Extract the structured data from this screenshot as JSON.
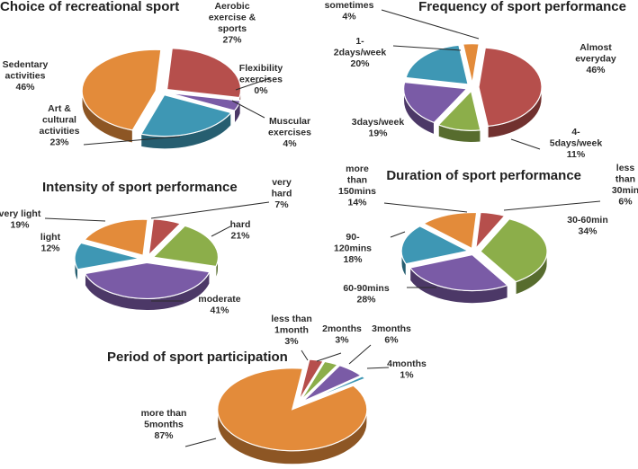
{
  "colors": {
    "red": "#B64F4C",
    "purple": "#7A5BA6",
    "teal": "#3E97B4",
    "orange": "#E38B3A",
    "green": "#8CAE4A",
    "text": "#2b2b2b"
  },
  "chart_data": [
    {
      "type": "pie",
      "title": "Choice of recreational sport",
      "slices": [
        {
          "label": [
            "Aerobic",
            "exercise &",
            "sports"
          ],
          "value": 27,
          "value_text": "27%",
          "color": "red"
        },
        {
          "label": [
            "Flexibility",
            "exercises"
          ],
          "value": 0,
          "value_text": "0%",
          "color": "green"
        },
        {
          "label": [
            "Muscular",
            "exercises"
          ],
          "value": 4,
          "value_text": "4%",
          "color": "purple"
        },
        {
          "label": [
            "Art &",
            "cultural",
            "activities"
          ],
          "value": 23,
          "value_text": "23%",
          "color": "teal"
        },
        {
          "label": [
            "Sedentary",
            "activities"
          ],
          "value": 46,
          "value_text": "46%",
          "color": "orange"
        }
      ]
    },
    {
      "type": "pie",
      "title": "Frequency of sport performance",
      "slices": [
        {
          "label": [
            "Almost",
            "everyday"
          ],
          "value": 46,
          "value_text": "46%",
          "color": "red"
        },
        {
          "label": [
            "4-",
            "5days/week"
          ],
          "value": 11,
          "value_text": "11%",
          "color": "green"
        },
        {
          "label": [
            "3days/week"
          ],
          "value": 19,
          "value_text": "19%",
          "color": "purple"
        },
        {
          "label": [
            "1-",
            "2days/week"
          ],
          "value": 20,
          "value_text": "20%",
          "color": "teal"
        },
        {
          "label": [
            "sometimes"
          ],
          "value": 4,
          "value_text": "4%",
          "color": "orange"
        }
      ]
    },
    {
      "type": "pie",
      "title": "Intensity of sport performance",
      "slices": [
        {
          "label": [
            "very",
            "hard"
          ],
          "value": 7,
          "value_text": "7%",
          "color": "red"
        },
        {
          "label": [
            "hard"
          ],
          "value": 21,
          "value_text": "21%",
          "color": "green"
        },
        {
          "label": [
            "moderate"
          ],
          "value": 41,
          "value_text": "41%",
          "color": "purple"
        },
        {
          "label": [
            "light"
          ],
          "value": 12,
          "value_text": "12%",
          "color": "teal"
        },
        {
          "label": [
            "very light"
          ],
          "value": 19,
          "value_text": "19%",
          "color": "orange"
        }
      ]
    },
    {
      "type": "pie",
      "title": "Duration of sport performance",
      "slices": [
        {
          "label": [
            "less",
            "than",
            "30min"
          ],
          "value": 6,
          "value_text": "6%",
          "color": "red"
        },
        {
          "label": [
            "30-60min"
          ],
          "value": 34,
          "value_text": "34%",
          "color": "green"
        },
        {
          "label": [
            "60-90mins"
          ],
          "value": 28,
          "value_text": "28%",
          "color": "purple"
        },
        {
          "label": [
            "90-",
            "120mins"
          ],
          "value": 18,
          "value_text": "18%",
          "color": "teal"
        },
        {
          "label": [
            "more",
            "than",
            "150mins"
          ],
          "value": 14,
          "value_text": "14%",
          "color": "orange"
        }
      ]
    },
    {
      "type": "pie",
      "title": "Period of sport participation",
      "slices": [
        {
          "label": [
            "less than",
            "1month"
          ],
          "value": 3,
          "value_text": "3%",
          "color": "red"
        },
        {
          "label": [
            "2months"
          ],
          "value": 3,
          "value_text": "3%",
          "color": "green"
        },
        {
          "label": [
            "3months"
          ],
          "value": 6,
          "value_text": "6%",
          "color": "purple"
        },
        {
          "label": [
            "4months"
          ],
          "value": 1,
          "value_text": "1%",
          "color": "teal"
        },
        {
          "label": [
            "more than",
            "5months"
          ],
          "value": 87,
          "value_text": "87%",
          "color": "orange"
        }
      ]
    }
  ]
}
